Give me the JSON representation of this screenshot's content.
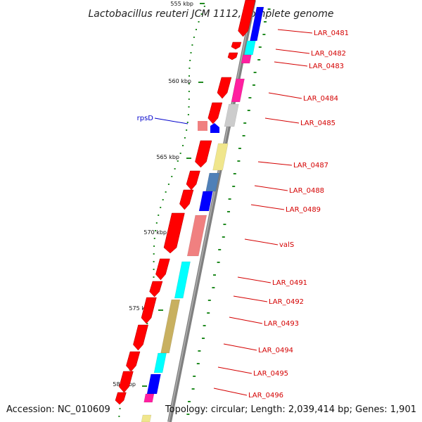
{
  "title": "Lactobacillus reuteri JCM 1112, complete genome",
  "accession": "Accession: NC_010609",
  "topology": "Topology: circular; Length: 2,039,414 bp; Genes: 1,901",
  "kbp_ticks": [
    "555 kbp",
    "560 kbp",
    "565 kbp",
    "570 kbp",
    "575 kbp",
    "580 kbp"
  ],
  "gene_labels": [
    "LAR_0481",
    "LAR_0482",
    "LAR_0483",
    "LAR_0484",
    "LAR_0485",
    "LAR_0487",
    "LAR_0488",
    "LAR_0489",
    "valS",
    "LAR_0491",
    "LAR_0492",
    "LAR_0493",
    "LAR_0494",
    "LAR_0495",
    "LAR_0496"
  ],
  "rpsD_label": "rpsD",
  "colors": {
    "gene_red": "#ff0000",
    "label_red": "#d40000",
    "label_blue": "#0000cc",
    "cog_blue": "#0000ff",
    "cog_steel": "#4f80b8",
    "cog_cyan": "#00ffff",
    "cog_magenta": "#ff1fa0",
    "cog_pink": "#f08080",
    "cog_gray": "#cccccc",
    "cog_khaki": "#f0e68c",
    "cog_tan": "#c8b060",
    "backbone": "#808080",
    "gc_green": "#228b22"
  }
}
